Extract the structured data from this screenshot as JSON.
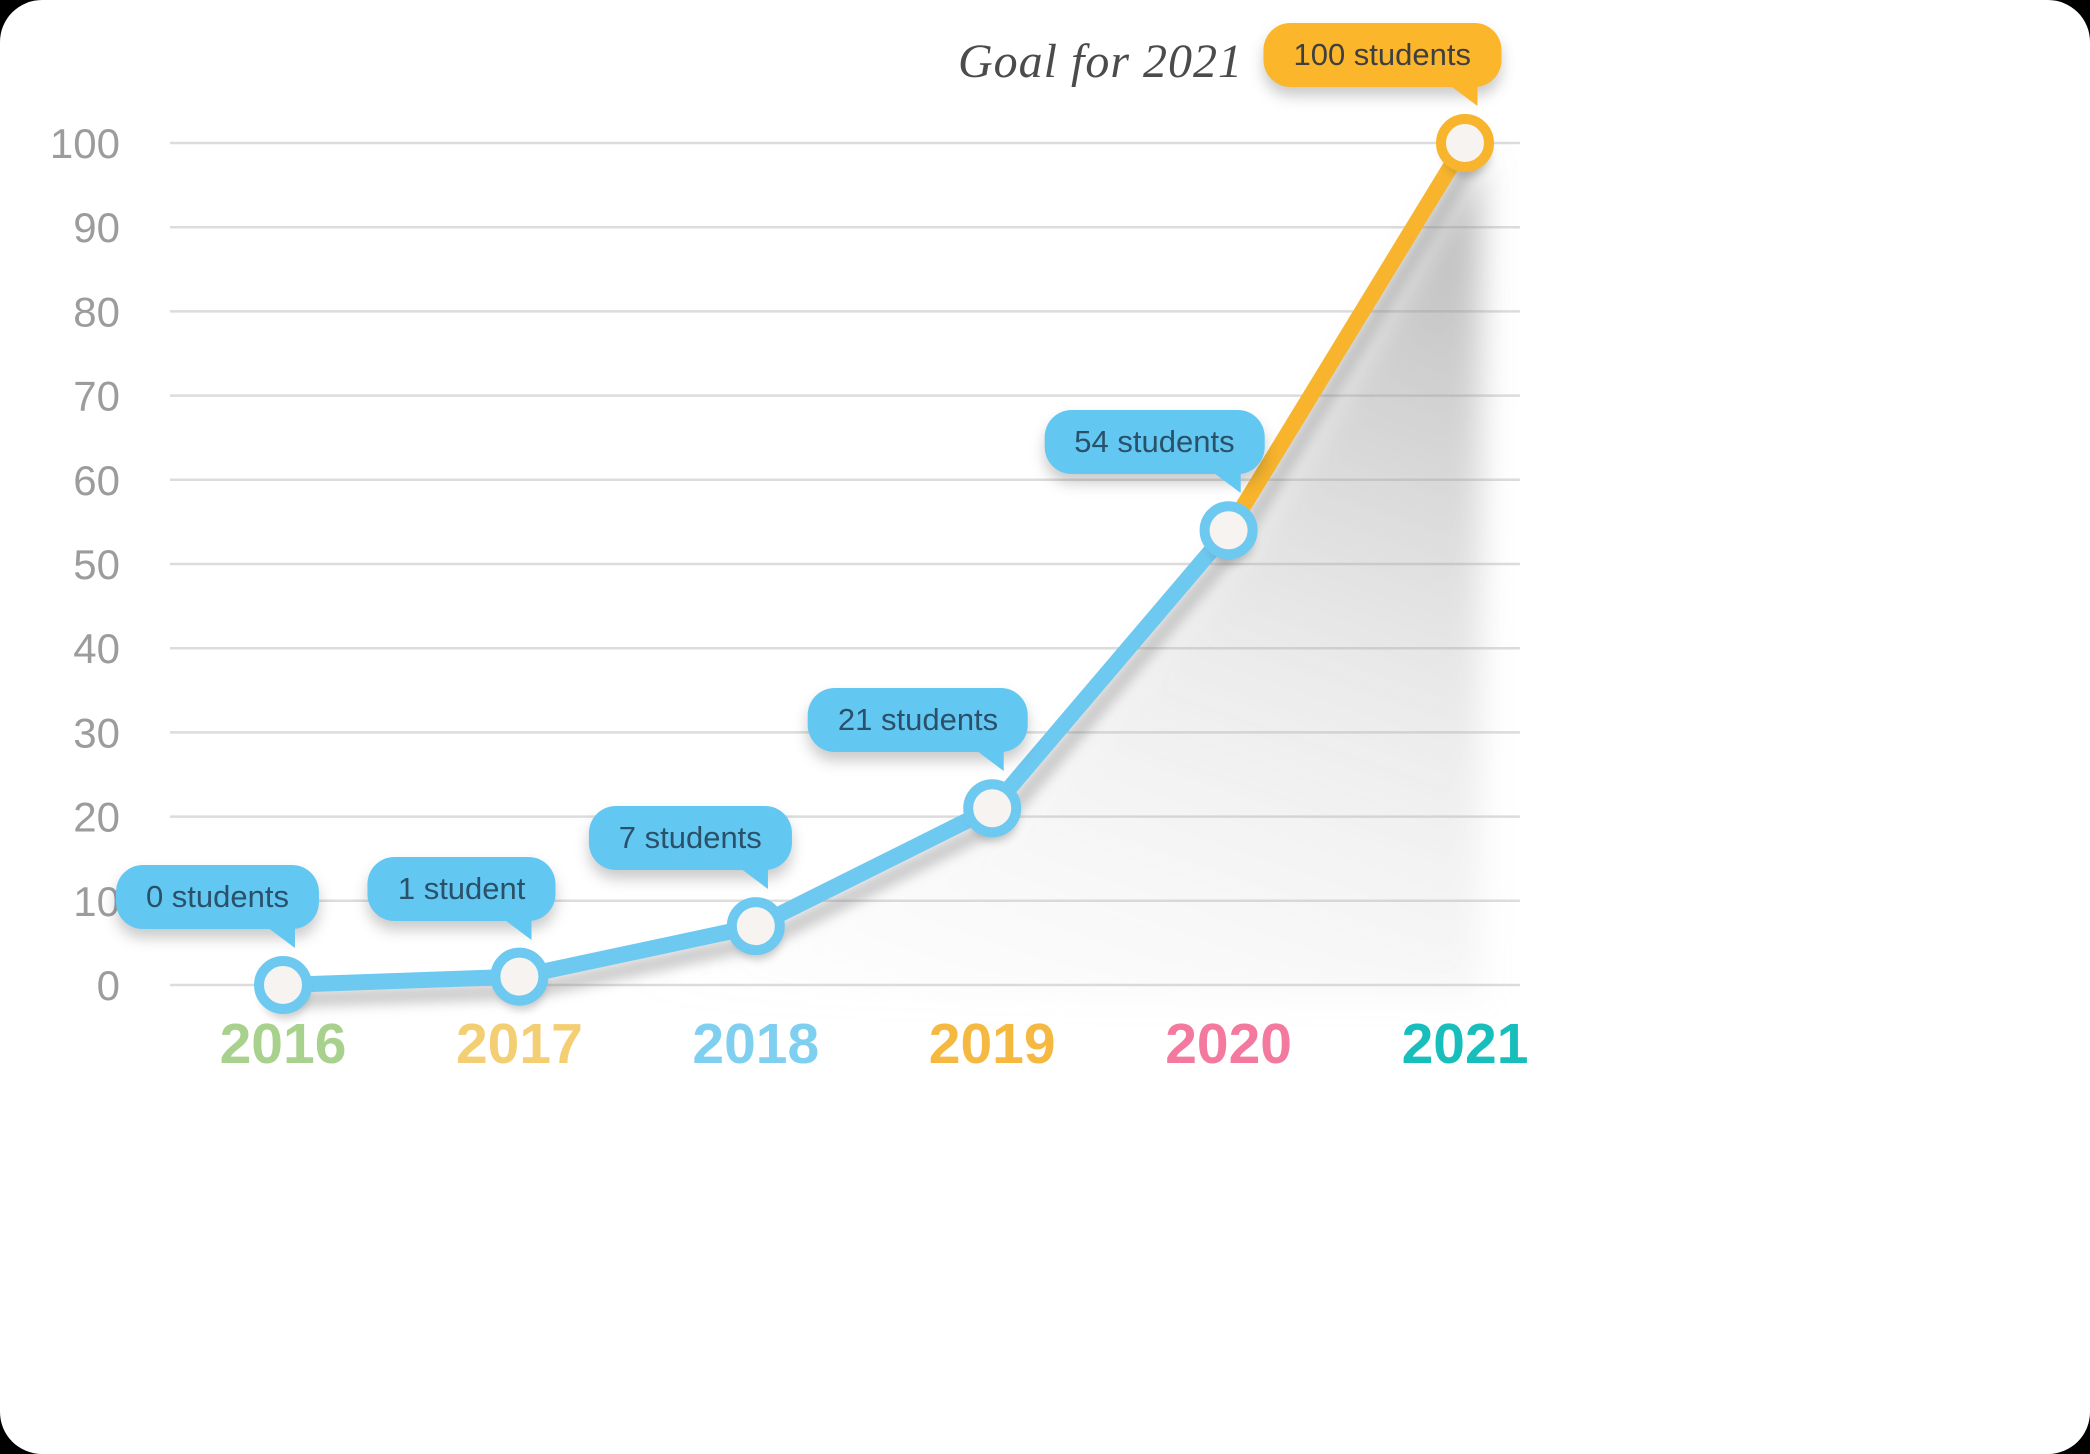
{
  "chart_data": {
    "type": "line",
    "goal_label": "Goal for 2021",
    "categories": [
      "2016",
      "2017",
      "2018",
      "2019",
      "2020",
      "2021"
    ],
    "series": [
      {
        "name": "students",
        "values": [
          0,
          1,
          7,
          21,
          54,
          100
        ]
      }
    ],
    "annotations": [
      {
        "year": "2016",
        "label": "0 students",
        "style": "blue"
      },
      {
        "year": "2017",
        "label": "1 student",
        "style": "blue"
      },
      {
        "year": "2018",
        "label": "7 students",
        "style": "blue"
      },
      {
        "year": "2019",
        "label": "21 students",
        "style": "blue"
      },
      {
        "year": "2020",
        "label": "54 students",
        "style": "blue"
      },
      {
        "year": "2021",
        "label": "100 students",
        "style": "gold"
      }
    ],
    "ylim": [
      0,
      100
    ],
    "yticks": [
      0,
      10,
      20,
      30,
      40,
      50,
      60,
      70,
      80,
      90,
      100
    ],
    "grid": true,
    "legend": "none",
    "colors": {
      "line_actual": "#6EC9F0",
      "line_goal": "#F7B42C",
      "bubble_blue": "#63C8F1",
      "bubble_gold": "#FBB62C",
      "point_fill": "#F6F3F0",
      "grid_line": "#DCDCDC",
      "y_label": "#9C9C9C",
      "x_label_colors": [
        "#A9D18E",
        "#F4CE73",
        "#7FD0F0",
        "#F5B942",
        "#F4799F",
        "#17BEBB"
      ]
    }
  }
}
